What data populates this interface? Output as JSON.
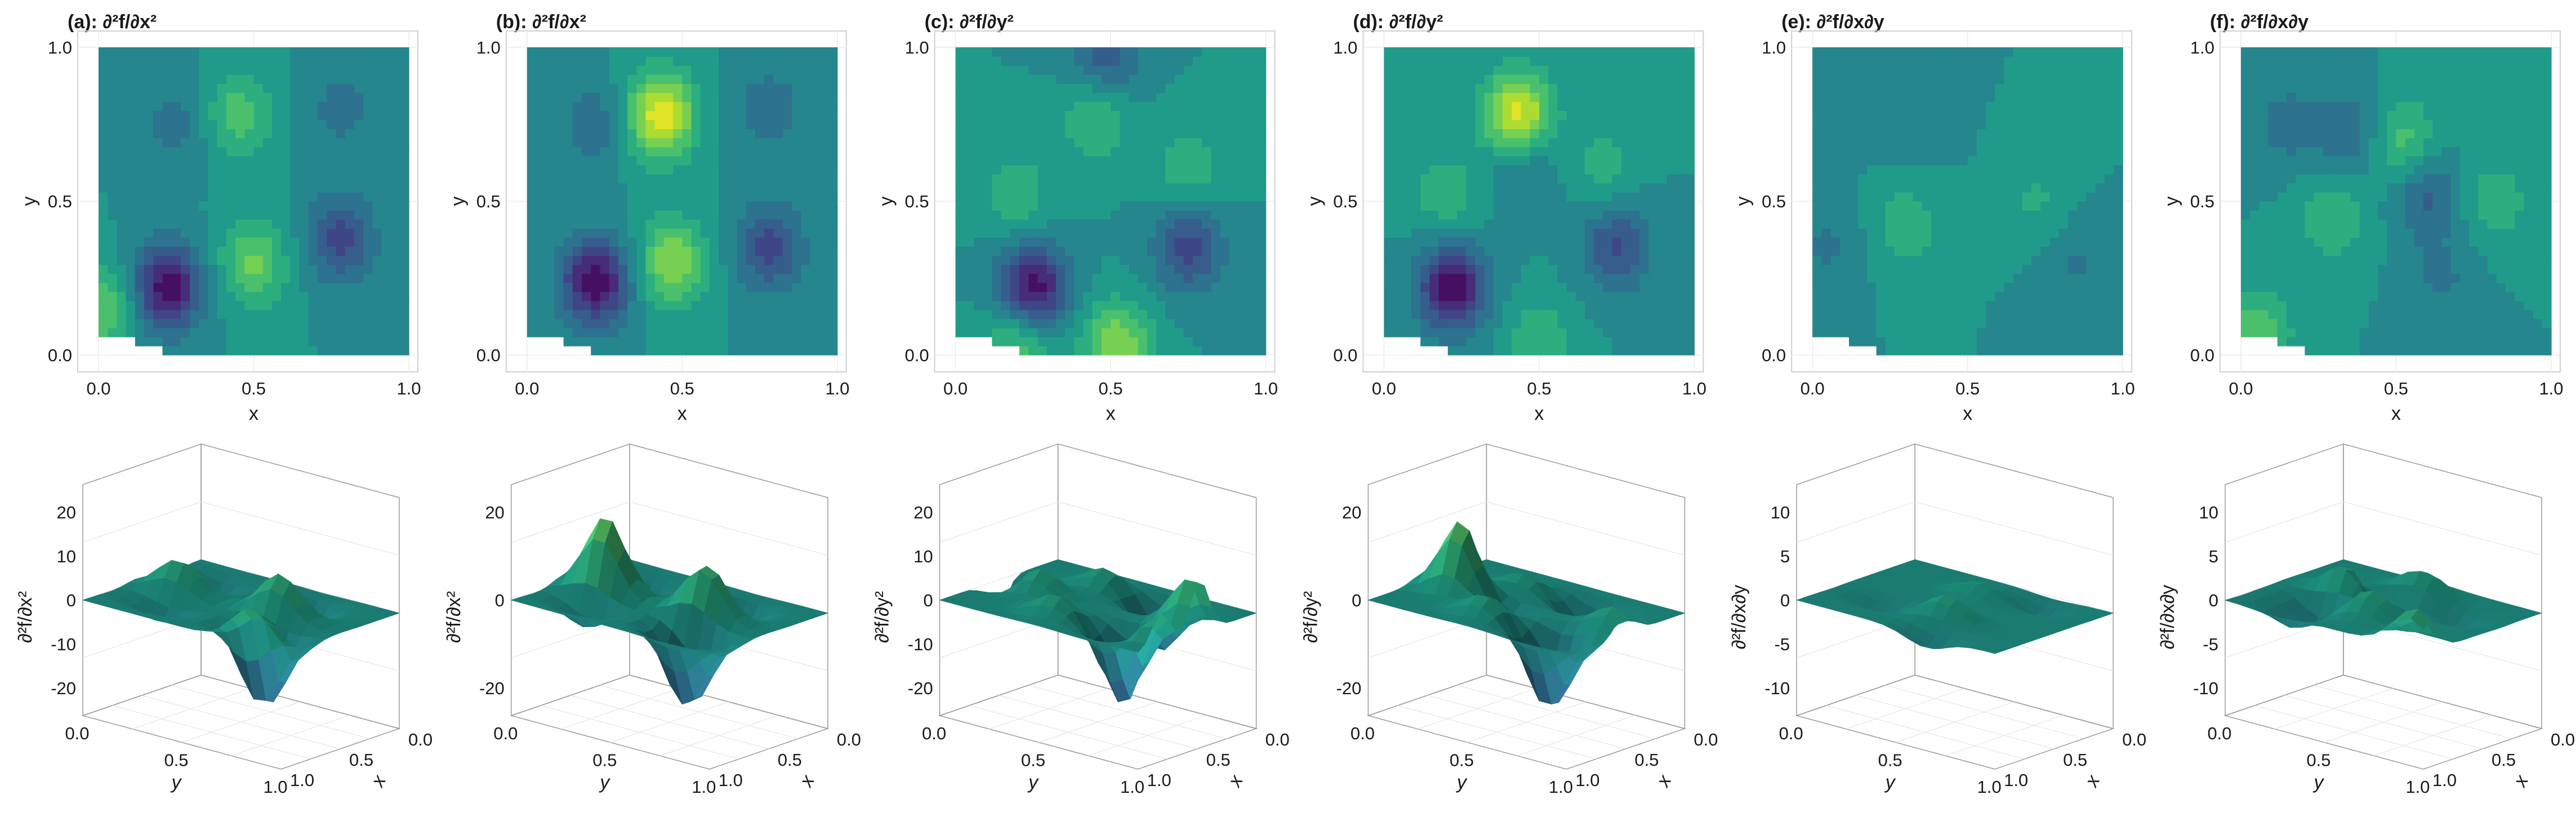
{
  "figure": {
    "panels": [
      {
        "title": "(a): ∂²f/∂x²",
        "zlabel": "∂²f/∂x²",
        "zticks": [
          "20",
          "10",
          "0",
          "-10",
          "-20"
        ]
      },
      {
        "title": "(b): ∂²f/∂x²",
        "zlabel": "∂²f/∂x²",
        "zticks": [
          "20",
          "0",
          "-20"
        ]
      },
      {
        "title": "(c): ∂²f/∂y²",
        "zlabel": "∂²f/∂y²",
        "zticks": [
          "20",
          "10",
          "0",
          "-10",
          "-20"
        ]
      },
      {
        "title": "(d): ∂²f/∂y²",
        "zlabel": "∂²f/∂y²",
        "zticks": [
          "20",
          "0",
          "-20"
        ]
      },
      {
        "title": "(e): ∂²f/∂x∂y",
        "zlabel": "∂²f/∂x∂y",
        "zticks": [
          "10",
          "5",
          "0",
          "-5",
          "-10"
        ]
      },
      {
        "title": "(f): ∂²f/∂x∂y",
        "zlabel": "∂²f/∂x∂y",
        "zticks": [
          "10",
          "5",
          "0",
          "-5",
          "-10"
        ]
      }
    ],
    "contour_axes": {
      "xlabel": "x",
      "ylabel": "y",
      "xticks": [
        "0.0",
        "0.5",
        "1.0"
      ],
      "yticks": [
        "0.0",
        "0.5",
        "1.0"
      ]
    },
    "surface_axes": {
      "xlabel": "x",
      "ylabel": "y",
      "xticks": [
        "0.0",
        "0.5",
        "1.0"
      ],
      "yticks": [
        "0.0",
        "0.5",
        "1.0"
      ]
    }
  },
  "chart_data": [
    {
      "type": "heatmap",
      "title": "(a): ∂²f/∂x²",
      "xlabel": "x",
      "ylabel": "y",
      "xlim": [
        0,
        1
      ],
      "ylim": [
        0,
        1
      ],
      "colormap": "viridis",
      "features": [
        {
          "x": 0.22,
          "y": 0.22,
          "value": -1.0
        },
        {
          "x": 0.5,
          "y": 0.3,
          "value": 0.55
        },
        {
          "x": 0.45,
          "y": 0.78,
          "value": 0.45
        },
        {
          "x": 0.78,
          "y": 0.38,
          "value": -0.6
        },
        {
          "x": 0.78,
          "y": 0.8,
          "value": -0.25
        },
        {
          "x": 0.25,
          "y": 0.75,
          "value": -0.25
        },
        {
          "x": 0.02,
          "y": 0.15,
          "value": 0.5
        }
      ]
    },
    {
      "type": "heatmap",
      "title": "(b): ∂²f/∂x²",
      "xlabel": "x",
      "ylabel": "y",
      "xlim": [
        0,
        1
      ],
      "ylim": [
        0,
        1
      ],
      "colormap": "viridis",
      "features": [
        {
          "x": 0.22,
          "y": 0.24,
          "value": -1.0
        },
        {
          "x": 0.43,
          "y": 0.78,
          "value": 1.0
        },
        {
          "x": 0.47,
          "y": 0.3,
          "value": 0.7
        },
        {
          "x": 0.78,
          "y": 0.35,
          "value": -0.6
        },
        {
          "x": 0.22,
          "y": 0.75,
          "value": -0.3
        },
        {
          "x": 0.78,
          "y": 0.8,
          "value": -0.3
        }
      ]
    },
    {
      "type": "heatmap",
      "title": "(c): ∂²f/∂y²",
      "xlabel": "x",
      "ylabel": "y",
      "xlim": [
        0,
        1
      ],
      "ylim": [
        0,
        1
      ],
      "colormap": "viridis",
      "features": [
        {
          "x": 0.25,
          "y": 0.22,
          "value": -1.0
        },
        {
          "x": 0.75,
          "y": 0.35,
          "value": -0.6
        },
        {
          "x": 0.45,
          "y": 0.78,
          "value": 0.4
        },
        {
          "x": 0.48,
          "y": 0.97,
          "value": -0.5
        },
        {
          "x": 0.2,
          "y": 0.52,
          "value": 0.3
        },
        {
          "x": 0.75,
          "y": 0.6,
          "value": 0.3
        },
        {
          "x": 0.52,
          "y": 0.03,
          "value": 0.7
        },
        {
          "x": 0.2,
          "y": 0.03,
          "value": 0.5
        }
      ]
    },
    {
      "type": "heatmap",
      "title": "(d): ∂²f/∂y²",
      "xlabel": "x",
      "ylabel": "y",
      "xlim": [
        0,
        1
      ],
      "ylim": [
        0,
        1
      ],
      "colormap": "viridis",
      "features": [
        {
          "x": 0.22,
          "y": 0.22,
          "value": -1.0
        },
        {
          "x": 0.43,
          "y": 0.78,
          "value": 1.0
        },
        {
          "x": 0.75,
          "y": 0.35,
          "value": -0.55
        },
        {
          "x": 0.45,
          "y": 0.62,
          "value": -0.3
        },
        {
          "x": 0.2,
          "y": 0.52,
          "value": 0.3
        },
        {
          "x": 0.7,
          "y": 0.62,
          "value": 0.25
        },
        {
          "x": 0.5,
          "y": 0.05,
          "value": 0.3
        }
      ]
    },
    {
      "type": "heatmap",
      "title": "(e): ∂²f/∂x∂y",
      "xlabel": "x",
      "ylabel": "y",
      "xlim": [
        0,
        1
      ],
      "ylim": [
        0,
        1
      ],
      "colormap": "viridis",
      "features": [
        {
          "x": 0.3,
          "y": 0.42,
          "value": 0.3
        },
        {
          "x": 0.72,
          "y": 0.5,
          "value": 0.2
        },
        {
          "x": 0.3,
          "y": 0.75,
          "value": -0.15
        },
        {
          "x": 0.85,
          "y": 0.3,
          "value": -0.2
        },
        {
          "x": 0.05,
          "y": 0.35,
          "value": -0.2
        }
      ]
    },
    {
      "type": "heatmap",
      "title": "(f): ∂²f/∂x∂y",
      "xlabel": "x",
      "ylabel": "y",
      "xlim": [
        0,
        1
      ],
      "ylim": [
        0,
        1
      ],
      "colormap": "viridis",
      "features": [
        {
          "x": 0.35,
          "y": 0.72,
          "value": -0.35
        },
        {
          "x": 0.52,
          "y": 0.7,
          "value": 0.45
        },
        {
          "x": 0.3,
          "y": 0.45,
          "value": 0.35
        },
        {
          "x": 0.6,
          "y": 0.52,
          "value": -0.4
        },
        {
          "x": 0.82,
          "y": 0.5,
          "value": 0.3
        },
        {
          "x": 0.65,
          "y": 0.25,
          "value": -0.2
        },
        {
          "x": 0.15,
          "y": 0.75,
          "value": -0.25
        },
        {
          "x": 0.05,
          "y": 0.07,
          "value": 0.5
        }
      ]
    },
    {
      "type": "area",
      "title": "",
      "xlabel": "x",
      "ylabel": "y",
      "zlabel": "∂²f/∂x²",
      "xlim": [
        0,
        1
      ],
      "ylim": [
        0,
        1
      ],
      "zlim": [
        -25,
        25
      ]
    },
    {
      "type": "area",
      "title": "",
      "xlabel": "x",
      "ylabel": "y",
      "zlabel": "∂²f/∂x²",
      "xlim": [
        0,
        1
      ],
      "ylim": [
        0,
        1
      ],
      "zlim": [
        -35,
        35
      ]
    },
    {
      "type": "area",
      "title": "",
      "xlabel": "x",
      "ylabel": "y",
      "zlabel": "∂²f/∂y²",
      "xlim": [
        0,
        1
      ],
      "ylim": [
        0,
        1
      ],
      "zlim": [
        -25,
        25
      ]
    },
    {
      "type": "area",
      "title": "",
      "xlabel": "x",
      "ylabel": "y",
      "zlabel": "∂²f/∂y²",
      "xlim": [
        0,
        1
      ],
      "ylim": [
        0,
        1
      ],
      "zlim": [
        -35,
        35
      ]
    },
    {
      "type": "area",
      "title": "",
      "xlabel": "x",
      "ylabel": "y",
      "zlabel": "∂²f/∂x∂y",
      "xlim": [
        0,
        1
      ],
      "ylim": [
        0,
        1
      ],
      "zlim": [
        -11,
        11
      ]
    },
    {
      "type": "area",
      "title": "",
      "xlabel": "x",
      "ylabel": "y",
      "zlabel": "∂²f/∂x∂y",
      "xlim": [
        0,
        1
      ],
      "ylim": [
        0,
        1
      ],
      "zlim": [
        -11,
        11
      ]
    }
  ]
}
